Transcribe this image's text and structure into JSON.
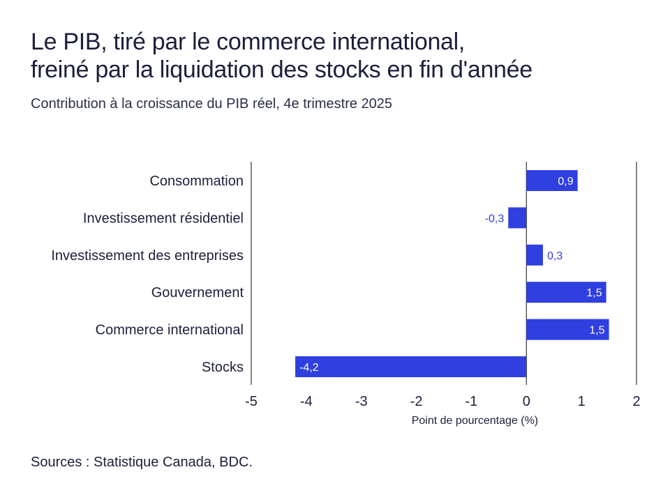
{
  "title_line1": "Le PIB, tiré par le commerce international,",
  "title_line2": "freiné par la liquidation des stocks en fin d'année",
  "subtitle": "Contribution à la croissance du PIB réel, 4e trimestre 2025",
  "source": "Sources : Statistique Canada, BDC.",
  "colors": {
    "bar": "#2f3fe0",
    "axis": "#333333",
    "text": "#1b1f3b"
  },
  "chart_data": {
    "type": "bar",
    "orientation": "horizontal",
    "categories": [
      "Consommation",
      "Investissement résidentiel",
      "Investissement des entreprises",
      "Gouvernement",
      "Commerce international",
      "Stocks"
    ],
    "values": [
      0.93,
      -0.33,
      0.3,
      1.45,
      1.5,
      -4.2
    ],
    "value_labels": [
      "0,9",
      "-0,3",
      "0,3",
      "1,5",
      "1,5",
      "-4,2"
    ],
    "xlabel": "Point de pourcentage (%)",
    "ylabel": "",
    "xlim": [
      -5,
      2
    ],
    "xticks": [
      -5,
      -4,
      -3,
      -2,
      -1,
      0,
      1,
      2
    ],
    "xtick_labels": [
      "-5",
      "-4",
      "-3",
      "-2",
      "-1",
      "0",
      "1",
      "2"
    ],
    "grid": false
  }
}
